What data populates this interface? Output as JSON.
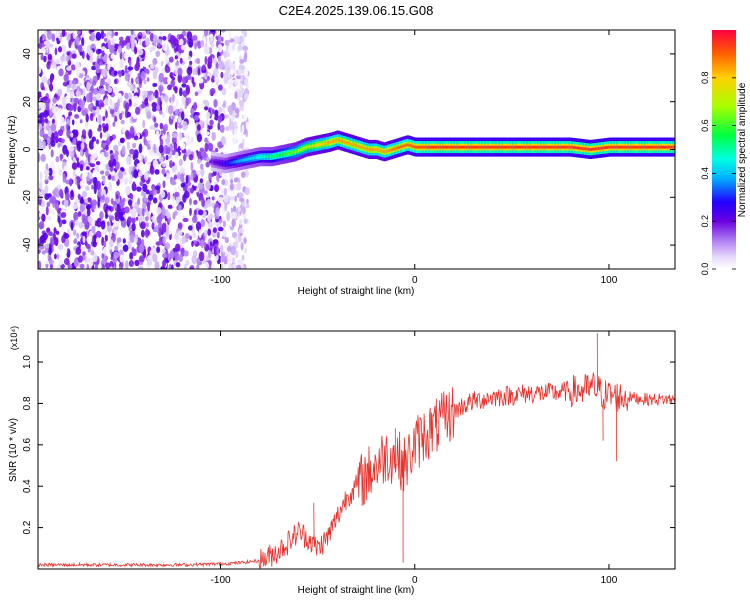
{
  "figure": {
    "title": "C2E4.2025.139.06.15.G08"
  },
  "chart_data": [
    {
      "type": "heatmap",
      "xlabel": "Height of straight line (km)",
      "ylabel": "Frequency (Hz)",
      "xlim": [
        -194,
        134
      ],
      "ylim": [
        -50,
        50
      ],
      "xticks": [
        -100,
        0,
        100
      ],
      "xtick_labels": [
        "-100",
        "0",
        "100"
      ],
      "yticks": [
        -40,
        -20,
        0,
        20,
        40
      ],
      "ytick_labels": [
        "-40",
        "-20",
        "0",
        "20",
        "40"
      ],
      "grid": false,
      "colorbar": {
        "label": "Normalized spectral amplitude",
        "range": [
          0,
          1
        ],
        "ticks": [
          0.0,
          0.2,
          0.4,
          0.6,
          0.8
        ],
        "tick_labels": [
          "0.0",
          "0.2",
          "0.4",
          "0.6",
          "0.8"
        ],
        "colormap": [
          "#ffffff",
          "#d9c8f5",
          "#9b59f0",
          "#6a00e0",
          "#2200ff",
          "#00b0ff",
          "#00ffe0",
          "#00ff40",
          "#a8ff00",
          "#ffd000",
          "#ff6000",
          "#ff0040"
        ]
      },
      "noise_region_x": [
        -194,
        -86
      ],
      "carrier_ridge": {
        "x": [
          -105,
          -98,
          -92,
          -86,
          -80,
          -74,
          -68,
          -62,
          -56,
          -50,
          -44,
          -40,
          -36,
          -32,
          -28,
          -24,
          -20,
          -16,
          -12,
          -8,
          -4,
          0,
          10,
          20,
          40,
          60,
          80,
          90,
          100,
          120,
          134
        ],
        "frequency": [
          -5,
          -6,
          -5,
          -4,
          -3,
          -3,
          -2,
          -1,
          1,
          2,
          3,
          4,
          3,
          2,
          1,
          0,
          0,
          -1,
          0,
          1,
          2,
          1,
          1,
          1,
          1,
          1,
          1,
          0,
          1,
          1,
          1
        ],
        "amplitude": [
          0.25,
          0.35,
          0.45,
          0.5,
          0.55,
          0.6,
          0.65,
          0.7,
          0.75,
          0.8,
          0.85,
          0.85,
          0.85,
          0.85,
          0.85,
          0.85,
          0.85,
          0.85,
          0.88,
          0.9,
          0.9,
          0.92,
          0.95,
          0.95,
          0.95,
          0.95,
          0.95,
          0.95,
          0.95,
          0.95,
          0.95
        ]
      }
    },
    {
      "type": "line",
      "xlabel": "Height of straight line (km)",
      "ylabel": "SNR (10 * v/v)",
      "scale_label": "(x10⁴)",
      "xlim": [
        -194,
        134
      ],
      "ylim": [
        0.0,
        1.15
      ],
      "xticks": [
        -100,
        0,
        100
      ],
      "xtick_labels": [
        "-100",
        "0",
        "100"
      ],
      "yticks": [
        0.2,
        0.4,
        0.6,
        0.8,
        1.0
      ],
      "ytick_labels": [
        "0.2",
        "0.4",
        "0.6",
        "0.8",
        "1.0"
      ],
      "grid": false,
      "series": [
        {
          "color": "#e8312a",
          "x": [
            -194,
            -180,
            -160,
            -140,
            -120,
            -100,
            -90,
            -80,
            -75,
            -70,
            -65,
            -60,
            -55,
            -50,
            -45,
            -40,
            -35,
            -30,
            -25,
            -20,
            -15,
            -10,
            -5,
            0,
            5,
            10,
            15,
            20,
            25,
            30,
            35,
            40,
            50,
            60,
            70,
            80,
            85,
            90,
            92,
            95,
            98,
            100,
            105,
            110,
            120,
            134
          ],
          "y": [
            0.02,
            0.02,
            0.02,
            0.02,
            0.02,
            0.025,
            0.03,
            0.04,
            0.06,
            0.09,
            0.13,
            0.18,
            0.15,
            0.1,
            0.15,
            0.25,
            0.35,
            0.4,
            0.45,
            0.5,
            0.55,
            0.55,
            0.5,
            0.6,
            0.65,
            0.68,
            0.72,
            0.76,
            0.79,
            0.81,
            0.82,
            0.83,
            0.84,
            0.85,
            0.85,
            0.86,
            0.86,
            0.87,
            0.88,
            0.86,
            0.84,
            0.84,
            0.83,
            0.83,
            0.82,
            0.82
          ]
        }
      ],
      "annotations": [
        {
          "x": -52,
          "y": 0.32
        },
        {
          "x": -10,
          "y": 0.68
        },
        {
          "x": 94,
          "y": 1.14
        },
        {
          "x": 97,
          "y": 0.62
        },
        {
          "x": 104,
          "y": 0.52
        },
        {
          "x": -6,
          "y": 0.03
        }
      ]
    }
  ]
}
